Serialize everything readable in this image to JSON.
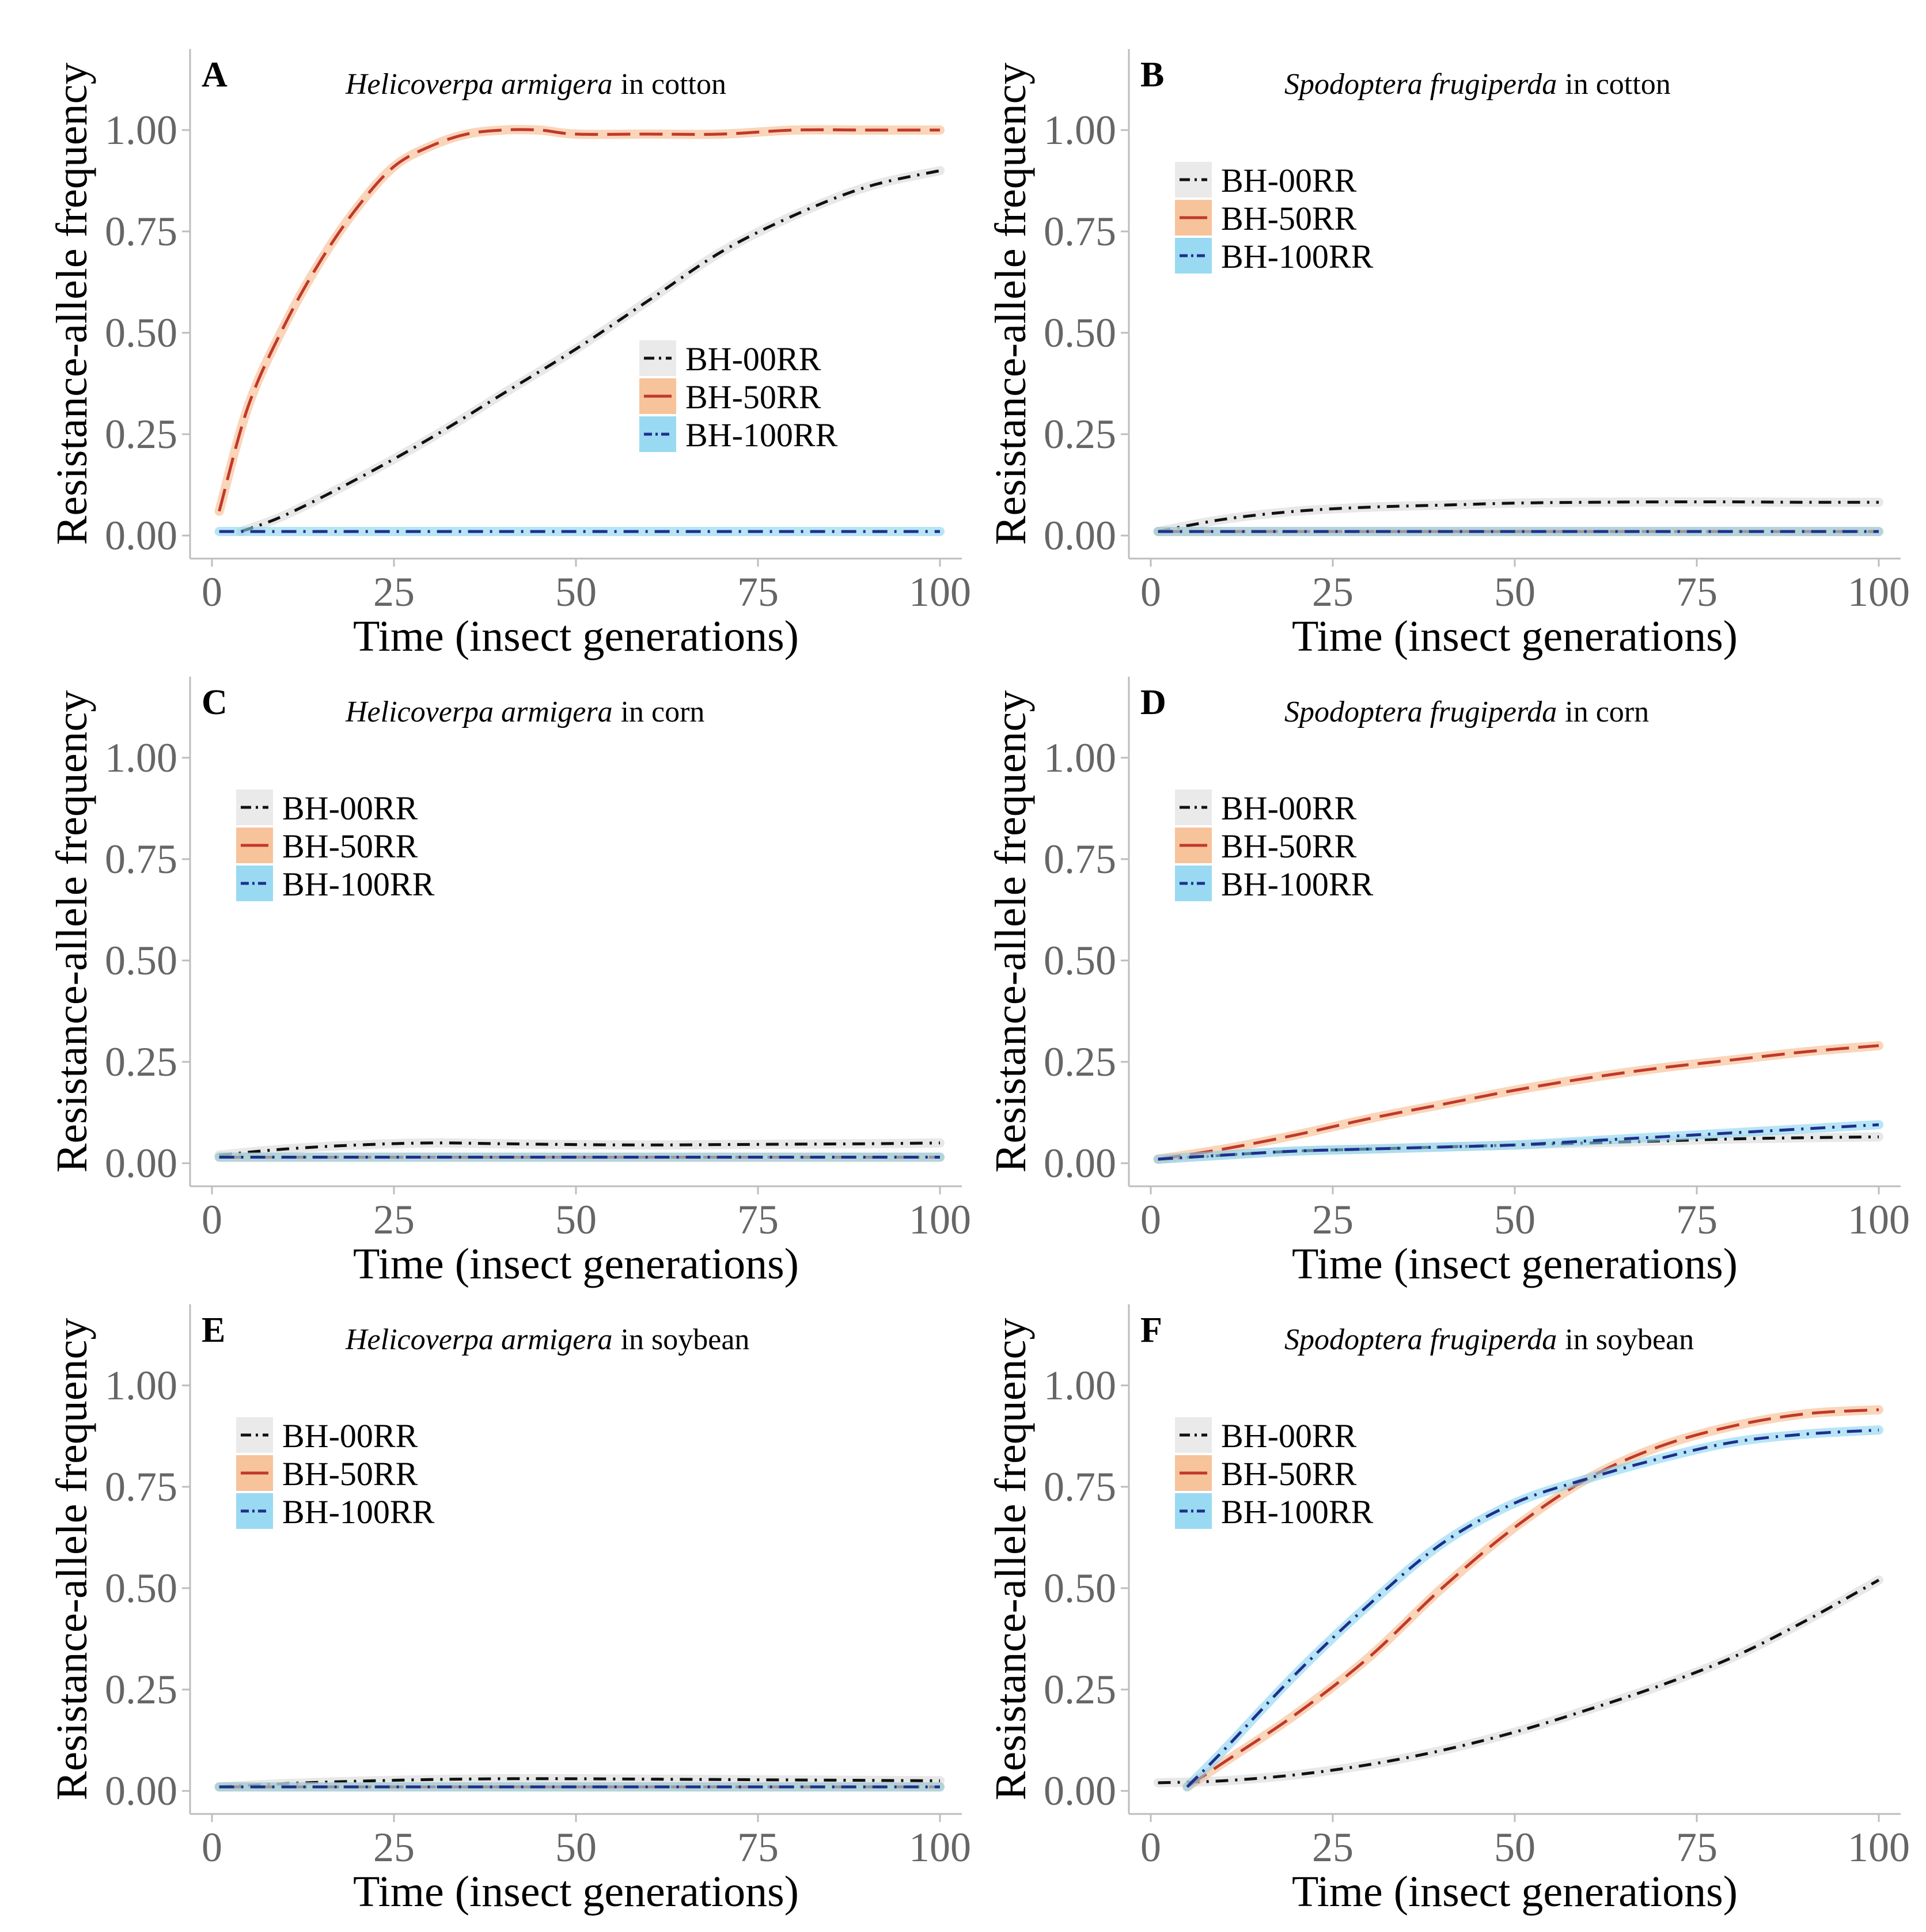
{
  "colors": {
    "BH-00RR": "#111111",
    "BH-50RR": "#c0392b",
    "BH-100RR": "#1f2f8c",
    "ribbon_BH-00RR": "#d9d9d9",
    "ribbon_BH-50RR": "#f6b98a",
    "ribbon_BH-100RR": "#87d3f0",
    "tick_text": "#666666",
    "axis_line": "#bdbdbd"
  },
  "chart_data": [
    {
      "type": "line",
      "panel": "A",
      "title_species": "Helicoverpa armigera",
      "title_crop": "in cotton",
      "xlabel": "Time (insect generations)",
      "ylabel": "Resistance-allele frequency",
      "xlim": [
        0,
        100
      ],
      "ylim": [
        0,
        1.2
      ],
      "xticks": [
        "0",
        "25",
        "50",
        "75",
        "100"
      ],
      "yticks": [
        "0.00",
        "0.25",
        "0.50",
        "0.75",
        "1.00"
      ],
      "legend_position": "center-right",
      "legend": [
        "BH-00RR",
        "BH-50RR",
        "BH-100RR"
      ],
      "series": [
        {
          "name": "BH-00RR",
          "x": [
            4,
            10,
            20,
            30,
            40,
            50,
            60,
            70,
            80,
            90,
            100
          ],
          "values": [
            0.01,
            0.05,
            0.14,
            0.24,
            0.35,
            0.46,
            0.58,
            0.7,
            0.79,
            0.86,
            0.9
          ]
        },
        {
          "name": "BH-50RR",
          "x": [
            1,
            5,
            10,
            15,
            20,
            25,
            30,
            35,
            40,
            45,
            50,
            60,
            70,
            80,
            90,
            100
          ],
          "values": [
            0.06,
            0.32,
            0.52,
            0.68,
            0.81,
            0.91,
            0.96,
            0.99,
            1.0,
            1.0,
            0.99,
            0.99,
            0.99,
            1.0,
            1.0,
            1.0
          ]
        },
        {
          "name": "BH-100RR",
          "x": [
            1,
            25,
            50,
            75,
            100
          ],
          "values": [
            0.01,
            0.01,
            0.01,
            0.01,
            0.01
          ]
        }
      ]
    },
    {
      "type": "line",
      "panel": "B",
      "title_species": "Spodoptera frugiperda",
      "title_crop": "in cotton",
      "xlabel": "Time (insect generations)",
      "ylabel": "Resistance-allele frequency",
      "xlim": [
        0,
        100
      ],
      "ylim": [
        0,
        1.2
      ],
      "xticks": [
        "0",
        "25",
        "50",
        "75",
        "100"
      ],
      "yticks": [
        "0.00",
        "0.25",
        "0.50",
        "0.75",
        "1.00"
      ],
      "legend_position": "top-left",
      "legend": [
        "BH-00RR",
        "BH-50RR",
        "BH-100RR"
      ],
      "series": [
        {
          "name": "BH-00RR",
          "x": [
            1,
            10,
            20,
            30,
            40,
            50,
            60,
            70,
            80,
            90,
            100
          ],
          "values": [
            0.01,
            0.04,
            0.06,
            0.07,
            0.075,
            0.08,
            0.082,
            0.083,
            0.083,
            0.082,
            0.082
          ]
        },
        {
          "name": "BH-50RR",
          "x": [
            1,
            25,
            50,
            75,
            100
          ],
          "values": [
            0.01,
            0.01,
            0.01,
            0.01,
            0.01
          ]
        },
        {
          "name": "BH-100RR",
          "x": [
            1,
            25,
            50,
            75,
            100
          ],
          "values": [
            0.01,
            0.01,
            0.01,
            0.01,
            0.01
          ]
        }
      ]
    },
    {
      "type": "line",
      "panel": "C",
      "title_species": "Helicoverpa armigera",
      "title_crop": "in corn",
      "xlabel": "Time (insect generations)",
      "ylabel": "Resistance-allele frequency",
      "xlim": [
        0,
        100
      ],
      "ylim": [
        0,
        1.2
      ],
      "xticks": [
        "0",
        "25",
        "50",
        "75",
        "100"
      ],
      "yticks": [
        "0.00",
        "0.25",
        "0.50",
        "0.75",
        "1.00"
      ],
      "legend_position": "top-left",
      "legend": [
        "BH-00RR",
        "BH-50RR",
        "BH-100RR"
      ],
      "series": [
        {
          "name": "BH-00RR",
          "x": [
            1,
            10,
            20,
            30,
            40,
            50,
            60,
            70,
            80,
            90,
            100
          ],
          "values": [
            0.02,
            0.035,
            0.045,
            0.05,
            0.048,
            0.046,
            0.045,
            0.046,
            0.047,
            0.048,
            0.05
          ]
        },
        {
          "name": "BH-50RR",
          "x": [
            1,
            25,
            50,
            75,
            100
          ],
          "values": [
            0.015,
            0.015,
            0.015,
            0.015,
            0.015
          ]
        },
        {
          "name": "BH-100RR",
          "x": [
            1,
            25,
            50,
            75,
            100
          ],
          "values": [
            0.015,
            0.015,
            0.015,
            0.015,
            0.015
          ]
        }
      ]
    },
    {
      "type": "line",
      "panel": "D",
      "title_species": "Spodoptera frugiperda",
      "title_crop": "in corn",
      "xlabel": "Time (insect generations)",
      "ylabel": "Resistance-allele frequency",
      "xlim": [
        0,
        100
      ],
      "ylim": [
        0,
        1.2
      ],
      "xticks": [
        "0",
        "25",
        "50",
        "75",
        "100"
      ],
      "yticks": [
        "0.00",
        "0.25",
        "0.50",
        "0.75",
        "1.00"
      ],
      "legend_position": "top-left",
      "legend": [
        "BH-00RR",
        "BH-50RR",
        "BH-100RR"
      ],
      "series": [
        {
          "name": "BH-00RR",
          "x": [
            1,
            10,
            20,
            30,
            40,
            50,
            60,
            70,
            80,
            90,
            100
          ],
          "values": [
            0.01,
            0.02,
            0.03,
            0.035,
            0.04,
            0.045,
            0.05,
            0.055,
            0.06,
            0.063,
            0.065
          ]
        },
        {
          "name": "BH-50RR",
          "x": [
            1,
            10,
            20,
            30,
            40,
            50,
            60,
            70,
            80,
            90,
            100
          ],
          "values": [
            0.01,
            0.035,
            0.07,
            0.11,
            0.145,
            0.18,
            0.21,
            0.235,
            0.255,
            0.275,
            0.29
          ]
        },
        {
          "name": "BH-100RR",
          "x": [
            1,
            10,
            20,
            30,
            40,
            50,
            60,
            70,
            80,
            90,
            100
          ],
          "values": [
            0.01,
            0.02,
            0.03,
            0.035,
            0.04,
            0.045,
            0.055,
            0.065,
            0.075,
            0.085,
            0.095
          ]
        }
      ]
    },
    {
      "type": "line",
      "panel": "E",
      "title_species": "Helicoverpa armigera",
      "title_crop": "in soybean",
      "xlabel": "Time (insect generations)",
      "ylabel": "Resistance-allele frequency",
      "xlim": [
        0,
        100
      ],
      "ylim": [
        0,
        1.2
      ],
      "xticks": [
        "0",
        "25",
        "50",
        "75",
        "100"
      ],
      "yticks": [
        "0.00",
        "0.25",
        "0.50",
        "0.75",
        "1.00"
      ],
      "legend_position": "top-left",
      "legend": [
        "BH-00RR",
        "BH-50RR",
        "BH-100RR"
      ],
      "series": [
        {
          "name": "BH-00RR",
          "x": [
            1,
            10,
            20,
            30,
            40,
            50,
            60,
            70,
            80,
            90,
            100
          ],
          "values": [
            0.01,
            0.018,
            0.024,
            0.028,
            0.03,
            0.03,
            0.029,
            0.028,
            0.027,
            0.026,
            0.025
          ]
        },
        {
          "name": "BH-50RR",
          "x": [
            1,
            25,
            50,
            75,
            100
          ],
          "values": [
            0.01,
            0.01,
            0.01,
            0.01,
            0.01
          ]
        },
        {
          "name": "BH-100RR",
          "x": [
            1,
            25,
            50,
            75,
            100
          ],
          "values": [
            0.01,
            0.01,
            0.01,
            0.01,
            0.01
          ]
        }
      ]
    },
    {
      "type": "line",
      "panel": "F",
      "title_species": "Spodoptera frugiperda",
      "title_crop": "in soybean",
      "xlabel": "Time (insect generations)",
      "ylabel": "Resistance-allele frequency",
      "xlim": [
        0,
        100
      ],
      "ylim": [
        0,
        1.2
      ],
      "xticks": [
        "0",
        "25",
        "50",
        "75",
        "100"
      ],
      "yticks": [
        "0.00",
        "0.25",
        "0.50",
        "0.75",
        "1.00"
      ],
      "legend_position": "top-left",
      "legend": [
        "BH-00RR",
        "BH-50RR",
        "BH-100RR"
      ],
      "series": [
        {
          "name": "BH-00RR",
          "x": [
            1,
            10,
            20,
            30,
            40,
            50,
            60,
            70,
            80,
            90,
            100
          ],
          "values": [
            0.02,
            0.025,
            0.04,
            0.065,
            0.1,
            0.145,
            0.2,
            0.26,
            0.33,
            0.42,
            0.52
          ]
        },
        {
          "name": "BH-50RR",
          "x": [
            5,
            10,
            20,
            30,
            40,
            50,
            60,
            70,
            80,
            90,
            100
          ],
          "values": [
            0.01,
            0.07,
            0.19,
            0.33,
            0.5,
            0.65,
            0.77,
            0.85,
            0.9,
            0.93,
            0.94
          ]
        },
        {
          "name": "BH-100RR",
          "x": [
            5,
            10,
            20,
            30,
            40,
            50,
            60,
            70,
            80,
            90,
            100
          ],
          "values": [
            0.01,
            0.1,
            0.29,
            0.46,
            0.61,
            0.71,
            0.77,
            0.82,
            0.86,
            0.88,
            0.89
          ]
        }
      ]
    }
  ]
}
